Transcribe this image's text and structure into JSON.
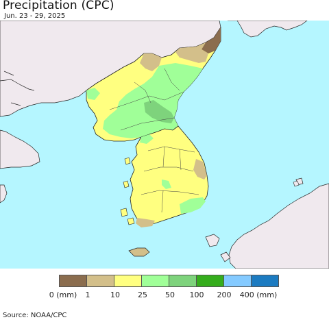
{
  "header": {
    "title": "Precipitation (CPC)",
    "date_range": "Jun. 23 - 29, 2025"
  },
  "map": {
    "colors": {
      "ocean": "#b5f6ff",
      "land": "#f0e9ee",
      "border": "#222222"
    }
  },
  "legend": {
    "colors": [
      "#8b6d4e",
      "#d3bf8a",
      "#ffff80",
      "#a0ff98",
      "#7ed37c",
      "#35ad1c",
      "#84caff",
      "#1c7bc1"
    ],
    "labels": [
      "0 (mm)",
      "1",
      "10",
      "25",
      "50",
      "100",
      "200",
      "400 (mm)"
    ]
  },
  "footer": {
    "source": "Source: NOAA/CPC"
  }
}
